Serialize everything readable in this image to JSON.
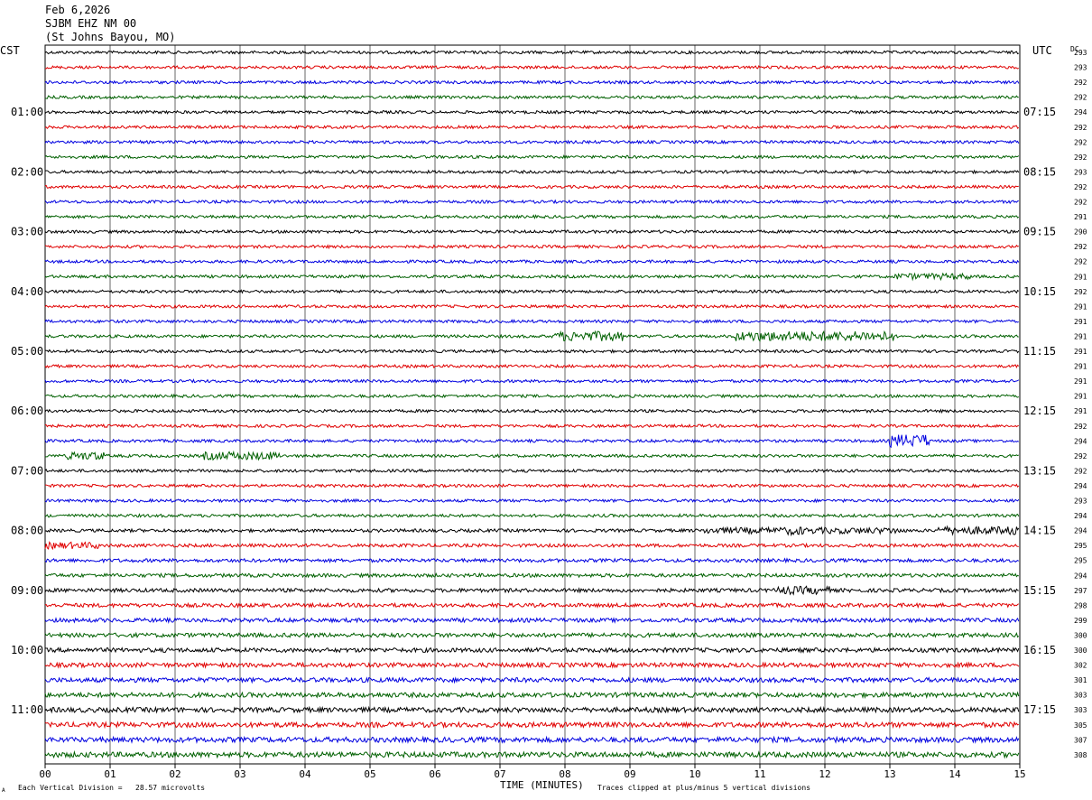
{
  "header": {
    "date": "Feb 6,2026",
    "station": "SJBM EHZ NM 00",
    "location": "(St Johns Bayou, MO)"
  },
  "left_tz": "CST",
  "right_tz": "UTC",
  "dc_label": "DC",
  "footer": {
    "scale_note": "Each Vertical Division =   28.57 microvolts",
    "xlabel": "TIME (MINUTES)",
    "clip_note": "Traces clipped at plus/minus 5 vertical divisions",
    "corner_mark": "A"
  },
  "chart_data": {
    "type": "line",
    "xlabel": "TIME (MINUTES)",
    "x_ticks": [
      "00",
      "01",
      "02",
      "03",
      "04",
      "05",
      "06",
      "07",
      "08",
      "09",
      "10",
      "11",
      "12",
      "13",
      "14",
      "15"
    ],
    "xlim": [
      0,
      15
    ],
    "grid": true,
    "left_hour_labels": [
      "01:00",
      "02:00",
      "03:00",
      "04:00",
      "05:00",
      "06:00",
      "07:00",
      "08:00",
      "09:00",
      "10:00",
      "11:00"
    ],
    "right_hour_labels": [
      "07:15",
      "08:15",
      "09:15",
      "10:15",
      "11:15",
      "12:15",
      "13:15",
      "14:15",
      "15:15",
      "16:15",
      "17:15"
    ],
    "trace_colors": [
      "#000000",
      "#e00000",
      "#0000e0",
      "#006000"
    ],
    "dc_offsets": [
      "293",
      "293",
      "292",
      "292",
      "294",
      "292",
      "292",
      "292",
      "293",
      "292",
      "292",
      "291",
      "290",
      "292",
      "292",
      "291",
      "292",
      "291",
      "291",
      "291",
      "291",
      "291",
      "291",
      "291",
      "291",
      "292",
      "294",
      "292",
      "292",
      "294",
      "293",
      "294",
      "294",
      "295",
      "295",
      "294",
      "297",
      "298",
      "299",
      "300",
      "300",
      "302",
      "301",
      "303",
      "303",
      "305",
      "307",
      "308"
    ]
  }
}
